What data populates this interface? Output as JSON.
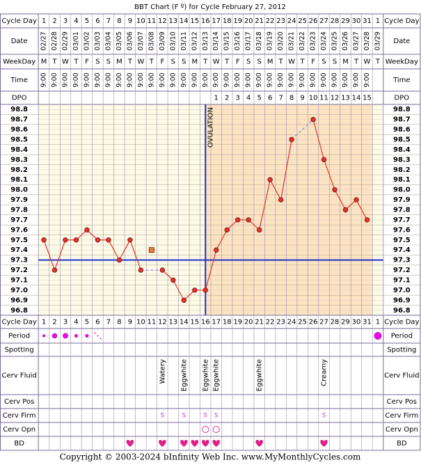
{
  "title": "BBT Chart (F º) for Cycle February 27, 2012",
  "row_labels": {
    "cycle_day": "Cycle Day",
    "date": "Date",
    "weekday": "WeekDay",
    "time": "Time",
    "dpo": "DPO",
    "period": "Period",
    "spotting": "Spotting",
    "cerv_fluid": "Cerv Fluid",
    "cerv_pos": "Cerv Pos",
    "cerv_firm": "Cerv Firm",
    "cerv_opn": "Cerv Opn",
    "bd": "BD"
  },
  "cycle_days": [
    1,
    2,
    3,
    4,
    5,
    6,
    7,
    8,
    9,
    10,
    11,
    12,
    13,
    14,
    15,
    16,
    17,
    18,
    19,
    20,
    21,
    22,
    23,
    24,
    25,
    26,
    27,
    28,
    29,
    30,
    31,
    1
  ],
  "dates": [
    "02/27",
    "02/28",
    "02/29",
    "03/01",
    "03/02",
    "03/03",
    "03/04",
    "03/05",
    "03/06",
    "03/07",
    "03/08",
    "03/09",
    "03/10",
    "03/11",
    "03/12",
    "03/13",
    "03/14",
    "03/15",
    "03/16",
    "03/17",
    "03/18",
    "03/19",
    "03/20",
    "03/21",
    "03/22",
    "03/23",
    "03/24",
    "03/25",
    "03/26",
    "03/27",
    "03/28",
    "03/29"
  ],
  "weekdays": [
    "M",
    "T",
    "W",
    "T",
    "F",
    "S",
    "S",
    "M",
    "T",
    "W",
    "T",
    "F",
    "S",
    "S",
    "M",
    "T",
    "W",
    "T",
    "F",
    "S",
    "S",
    "M",
    "T",
    "W",
    "T",
    "F",
    "S",
    "S",
    "M",
    "T",
    "W",
    "T"
  ],
  "times": [
    "9:00",
    "9:00",
    "9:00",
    "9:00",
    "9:00",
    "9:00",
    "9:00",
    "9:00",
    "9:00",
    "9:00",
    "9:00",
    "9:00",
    "9:00",
    "9:00",
    "9:00",
    "9:00",
    "9:00",
    "9:00",
    "9:00",
    "9:00",
    "9:00",
    "9:00",
    "9:00",
    "9:00",
    "9:00",
    "9:00",
    "9:00",
    "9:00",
    "9:00",
    "9:00",
    "9:00",
    null
  ],
  "dpo": [
    null,
    null,
    null,
    null,
    null,
    null,
    null,
    null,
    null,
    null,
    null,
    null,
    null,
    null,
    null,
    null,
    1,
    2,
    3,
    4,
    5,
    6,
    7,
    8,
    9,
    10,
    11,
    12,
    13,
    14,
    15,
    null
  ],
  "chart_data": {
    "type": "line",
    "values": [
      97.5,
      97.2,
      97.5,
      97.5,
      97.6,
      97.5,
      97.5,
      97.3,
      97.5,
      97.2,
      null,
      97.2,
      97.1,
      96.9,
      97.0,
      97.0,
      97.4,
      97.6,
      97.7,
      97.7,
      97.6,
      98.1,
      97.9,
      98.5,
      null,
      98.7,
      98.3,
      98.0,
      97.8,
      97.9,
      97.7,
      null
    ],
    "excluded_values": [
      null,
      null,
      null,
      null,
      null,
      null,
      null,
      null,
      null,
      null,
      97.4,
      null,
      null,
      null,
      null,
      null,
      null,
      null,
      null,
      null,
      null,
      null,
      null,
      null,
      null,
      null,
      null,
      null,
      null,
      null,
      null,
      null
    ],
    "color": "#e0332b",
    "ylim": [
      96.75,
      98.85
    ],
    "yticks": [
      96.8,
      96.9,
      {
        "value": 97.0,
        "label": "97.0"
      },
      97.1,
      97.2,
      97.3,
      97.4,
      97.5,
      97.6,
      97.7,
      97.8,
      97.9,
      {
        "value": 98.0,
        "label": "98.0"
      },
      98.1,
      98.2,
      98.3,
      98.4,
      98.5,
      98.6,
      98.7,
      98.8
    ],
    "coverline": 97.3,
    "ovulation_label": "OVULATION"
  },
  "cerv_fluid": [
    null,
    null,
    null,
    null,
    null,
    null,
    null,
    null,
    null,
    null,
    null,
    "Watery",
    null,
    "Eggwhite",
    null,
    "Eggwhite",
    "Eggwhite",
    null,
    null,
    null,
    "Eggwhite",
    null,
    null,
    null,
    null,
    null,
    "Creamy",
    null,
    null,
    null,
    null,
    null
  ],
  "cerv_firm": [
    null,
    null,
    null,
    null,
    null,
    null,
    null,
    null,
    null,
    null,
    null,
    "S",
    null,
    "S",
    null,
    "S",
    "S",
    null,
    null,
    null,
    null,
    null,
    null,
    null,
    null,
    null,
    "S",
    null,
    null,
    null,
    null,
    null
  ],
  "footer": "Copyright © 2003-2024 bInfinity Web Inc.    www.MyMonthlyCycles.com"
}
